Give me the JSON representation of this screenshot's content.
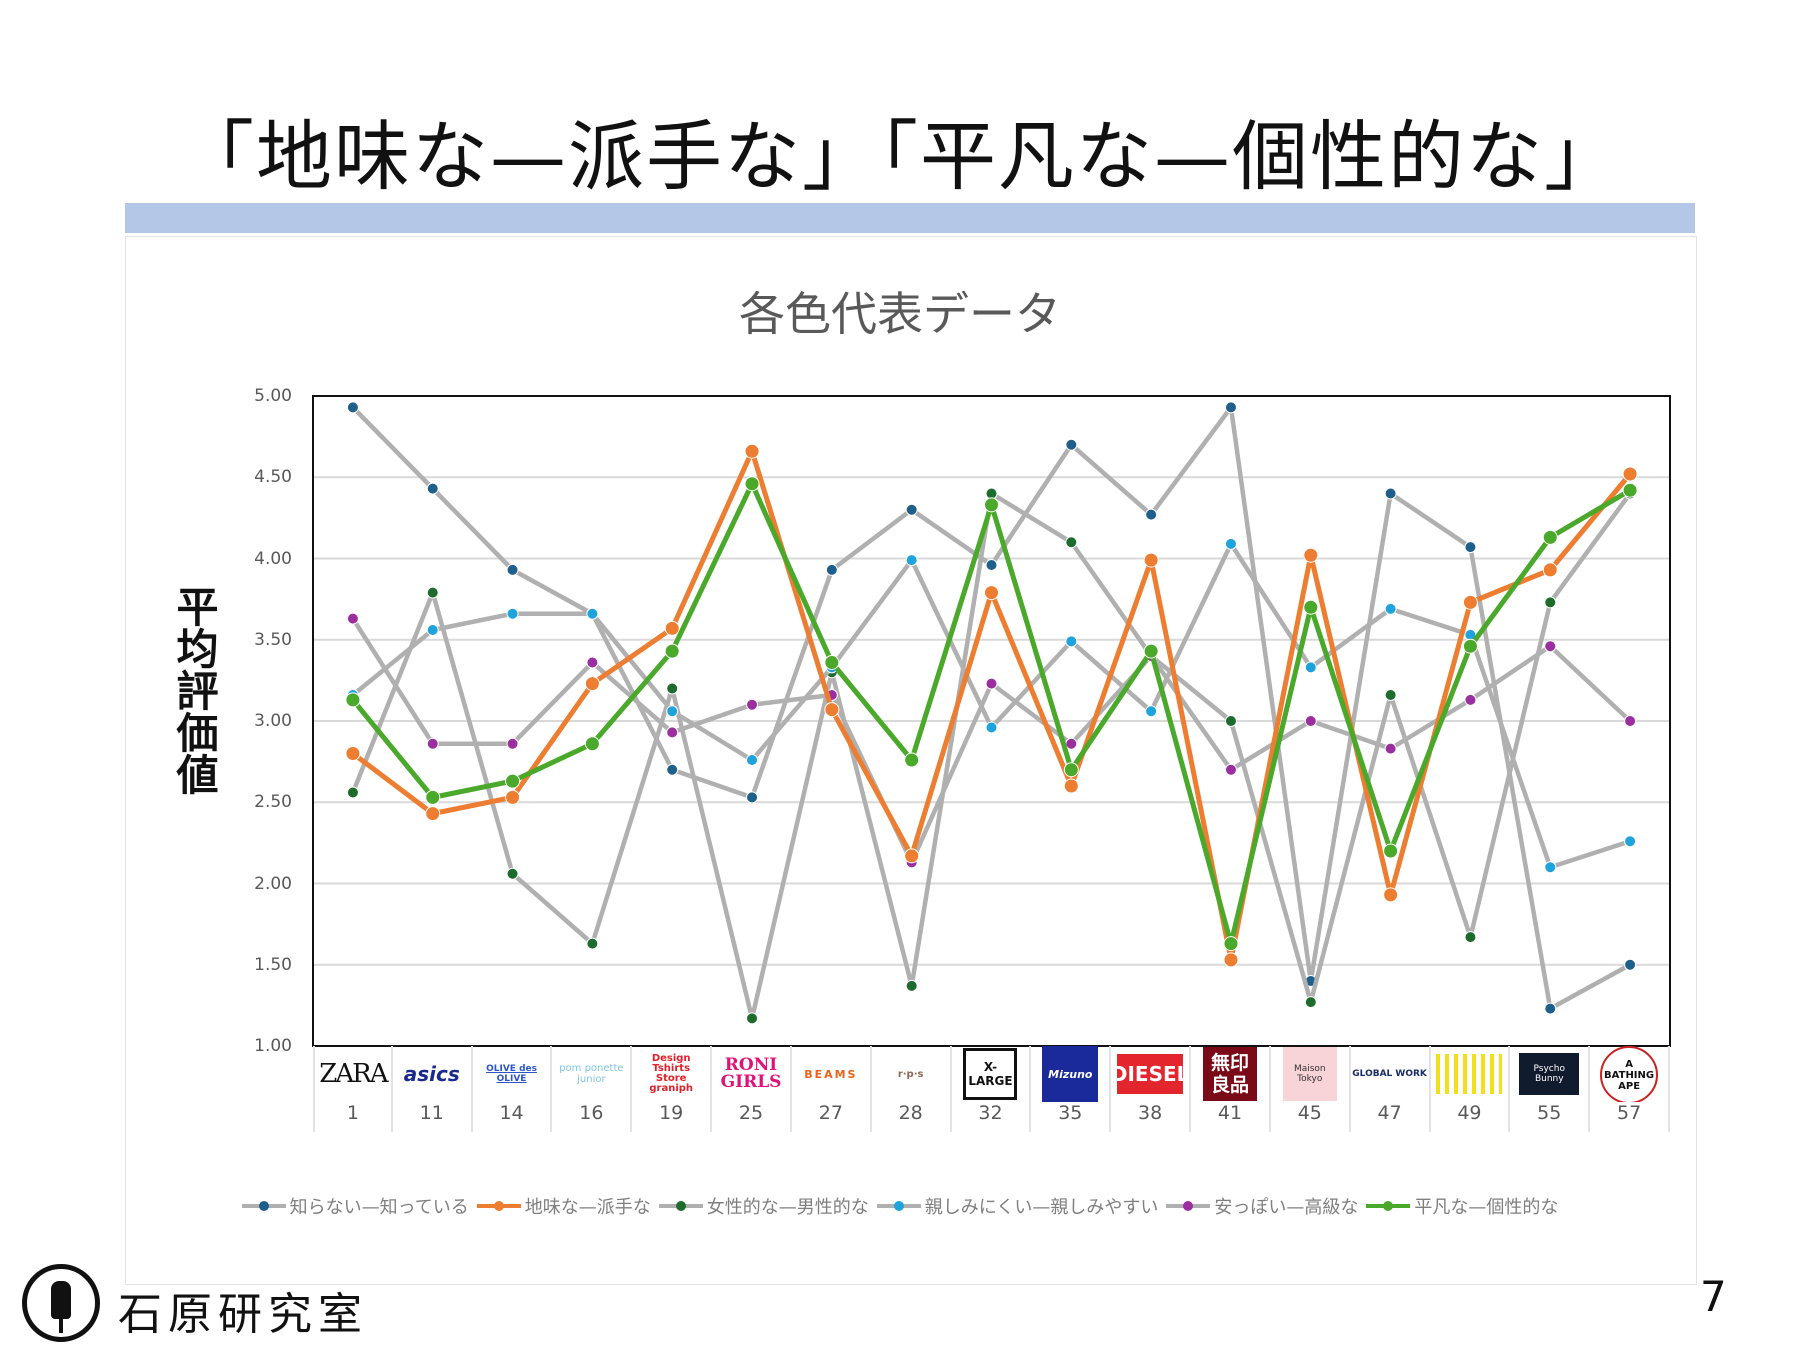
{
  "slide": {
    "title": "「地味な—派手な」「平凡な—個性的な」",
    "footer": "石原研究室",
    "page_number": "7"
  },
  "chart_data": {
    "type": "line",
    "title": "各色代表データ",
    "ylabel": "平均評価値",
    "xlabel": "",
    "ylim": [
      1.0,
      5.0
    ],
    "yticks": [
      "1.00",
      "1.50",
      "2.00",
      "2.50",
      "3.00",
      "3.50",
      "4.00",
      "4.50",
      "5.00"
    ],
    "grid": true,
    "legend_position": "bottom",
    "categories": [
      "1",
      "11",
      "14",
      "16",
      "19",
      "25",
      "27",
      "28",
      "32",
      "35",
      "38",
      "41",
      "45",
      "47",
      "49",
      "55",
      "57"
    ],
    "brand_logos": [
      "ZARA",
      "asics",
      "OLIVE des OLIVE",
      "pom ponette junior",
      "Design Tshirts Store graniph",
      "RONI GIRLS",
      "BEAMS",
      "r·p·s",
      "X-LARGE",
      "Mizuno",
      "DIESEL",
      "無印良品",
      "Maison Tokyo",
      "GLOBAL WORK",
      "",
      "Psycho Bunny",
      "A BATHING APE"
    ],
    "series": [
      {
        "name": "知らない—知っている",
        "line_color": "#b0b0b0",
        "marker_color": "#1f5f8b",
        "values": [
          4.93,
          4.43,
          3.93,
          3.66,
          2.7,
          2.53,
          3.93,
          4.3,
          3.96,
          4.7,
          4.27,
          4.93,
          1.4,
          4.4,
          4.07,
          1.23,
          1.5
        ]
      },
      {
        "name": "地味な—派手な",
        "line_color": "#ed7d31",
        "marker_color": "#ed7d31",
        "values": [
          2.8,
          2.43,
          2.53,
          3.23,
          3.57,
          4.66,
          3.07,
          2.17,
          3.79,
          2.6,
          3.99,
          1.53,
          4.02,
          1.93,
          3.73,
          3.93,
          4.52
        ]
      },
      {
        "name": "女性的な—男性的な",
        "line_color": "#b0b0b0",
        "marker_color": "#1e6b2e",
        "values": [
          2.56,
          3.79,
          2.06,
          1.63,
          3.2,
          1.17,
          3.3,
          1.37,
          4.4,
          4.1,
          3.4,
          3.0,
          1.27,
          3.16,
          1.67,
          3.73,
          4.4
        ]
      },
      {
        "name": "親しみにくい—親しみやすい",
        "line_color": "#b0b0b0",
        "marker_color": "#1fa3dc",
        "values": [
          3.16,
          3.56,
          3.66,
          3.66,
          3.06,
          2.76,
          3.33,
          3.99,
          2.96,
          3.49,
          3.06,
          4.09,
          3.33,
          3.69,
          3.53,
          2.1,
          2.26
        ]
      },
      {
        "name": "安っぽい—高級な",
        "line_color": "#b0b0b0",
        "marker_color": "#9b2fa0",
        "values": [
          3.63,
          2.86,
          2.86,
          3.36,
          2.93,
          3.1,
          3.16,
          2.13,
          3.23,
          2.86,
          3.4,
          2.7,
          3.0,
          2.83,
          3.13,
          3.46,
          3.0
        ]
      },
      {
        "name": "平凡な—個性的な",
        "line_color": "#4aa82a",
        "marker_color": "#4aa82a",
        "values": [
          3.13,
          2.53,
          2.63,
          2.86,
          3.43,
          4.46,
          3.36,
          2.76,
          4.33,
          2.7,
          3.43,
          1.63,
          3.7,
          2.2,
          3.46,
          4.13,
          4.42
        ]
      }
    ]
  }
}
